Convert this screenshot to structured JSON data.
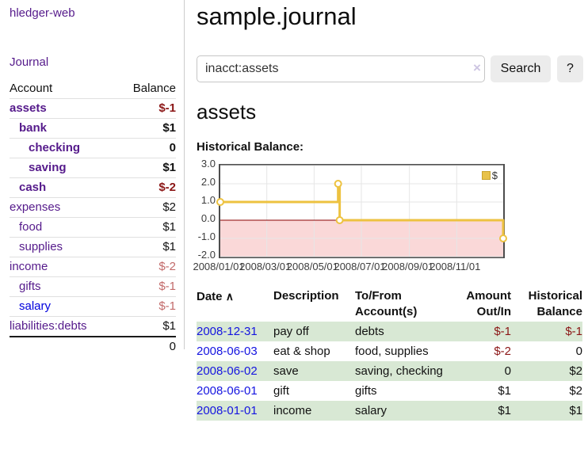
{
  "app": {
    "title": "hledger-web"
  },
  "sidebar": {
    "journal_link": "Journal",
    "accounts_table": {
      "headers": {
        "account": "Account",
        "balance": "Balance"
      },
      "rows": [
        {
          "account": "assets",
          "balance": "$-1",
          "indent": 1,
          "bold": true,
          "link_color": "purple",
          "balance_tone": "neg-strong"
        },
        {
          "account": "bank",
          "balance": "$1",
          "indent": 2,
          "bold": true,
          "link_color": "purple",
          "balance_tone": "normal"
        },
        {
          "account": "checking",
          "balance": "0",
          "indent": 3,
          "bold": true,
          "link_color": "purple",
          "balance_tone": "normal"
        },
        {
          "account": "saving",
          "balance": "$1",
          "indent": 3,
          "bold": true,
          "link_color": "purple",
          "balance_tone": "normal"
        },
        {
          "account": "cash",
          "balance": "$-2",
          "indent": 2,
          "bold": true,
          "link_color": "purple",
          "balance_tone": "neg-strong"
        },
        {
          "account": "expenses",
          "balance": "$2",
          "indent": 1,
          "bold": false,
          "link_color": "purple",
          "balance_tone": "normal"
        },
        {
          "account": "food",
          "balance": "$1",
          "indent": 2,
          "bold": false,
          "link_color": "purple",
          "balance_tone": "normal"
        },
        {
          "account": "supplies",
          "balance": "$1",
          "indent": 2,
          "bold": false,
          "link_color": "purple",
          "balance_tone": "normal"
        },
        {
          "account": "income",
          "balance": "$-2",
          "indent": 1,
          "bold": false,
          "link_color": "purple",
          "balance_tone": "neg-muted"
        },
        {
          "account": "gifts",
          "balance": "$-1",
          "indent": 2,
          "bold": false,
          "link_color": "purple",
          "balance_tone": "neg-muted"
        },
        {
          "account": "salary",
          "balance": "$-1",
          "indent": 2,
          "bold": false,
          "link_color": "blue",
          "balance_tone": "neg-muted"
        },
        {
          "account": "liabilities:debts",
          "balance": "$1",
          "indent": 1,
          "bold": false,
          "link_color": "purple",
          "balance_tone": "normal"
        }
      ],
      "total": "0"
    }
  },
  "main": {
    "title": "sample.journal",
    "search": {
      "value": "inacct:assets",
      "clear_icon": "×",
      "search_button_label": "Search",
      "help_button_label": "?"
    },
    "account_heading": "assets",
    "chart_title": "Historical Balance:"
  },
  "chart_data": {
    "type": "line",
    "step": true,
    "title": "Historical Balance:",
    "x_range": [
      "2008-01-01",
      "2008-12-31"
    ],
    "x_tick_labels": [
      "2008/01/01",
      "2008/03/01",
      "2008/05/01",
      "2008/07/01",
      "2008/09/01",
      "2008/11/01"
    ],
    "y_ticks": [
      "3.0",
      "2.0",
      "1.0",
      "0.0",
      "-1.0",
      "-2.0"
    ],
    "ylim": [
      -2,
      3
    ],
    "grid": true,
    "legend": {
      "label": "$",
      "position": "top-right",
      "swatch_color": "#e8c24a"
    },
    "zero_line_color": "#8b0000",
    "negative_area_color": "#fad8d8",
    "series": [
      {
        "name": "$",
        "color": "#EDC240",
        "points": [
          {
            "date": "2008-01-01",
            "value": 1
          },
          {
            "date": "2008-06-01",
            "value": 2
          },
          {
            "date": "2008-06-03",
            "value": 0
          },
          {
            "date": "2008-12-31",
            "value": -1
          }
        ]
      }
    ]
  },
  "register_table": {
    "headers": {
      "date": "Date",
      "sort_icon": "∧",
      "description": "Description",
      "accounts": "To/From Account(s)",
      "amount": "Amount Out/In",
      "balance": "Historical Balance"
    },
    "rows": [
      {
        "date": "2008-12-31",
        "description": "pay off",
        "accounts": "debts",
        "amount": "$-1",
        "amount_negative": true,
        "balance": "$-1",
        "balance_negative": true
      },
      {
        "date": "2008-06-03",
        "description": "eat & shop",
        "accounts": "food, supplies",
        "amount": "$-2",
        "amount_negative": true,
        "balance": "0",
        "balance_negative": false
      },
      {
        "date": "2008-06-02",
        "description": "save",
        "accounts": "saving, checking",
        "amount": "0",
        "amount_negative": false,
        "balance": "$2",
        "balance_negative": false
      },
      {
        "date": "2008-06-01",
        "description": "gift",
        "accounts": "gifts",
        "amount": "$1",
        "amount_negative": false,
        "balance": "$2",
        "balance_negative": false
      },
      {
        "date": "2008-01-01",
        "description": "income",
        "accounts": "salary",
        "amount": "$1",
        "amount_negative": false,
        "balance": "$1",
        "balance_negative": false
      }
    ]
  }
}
